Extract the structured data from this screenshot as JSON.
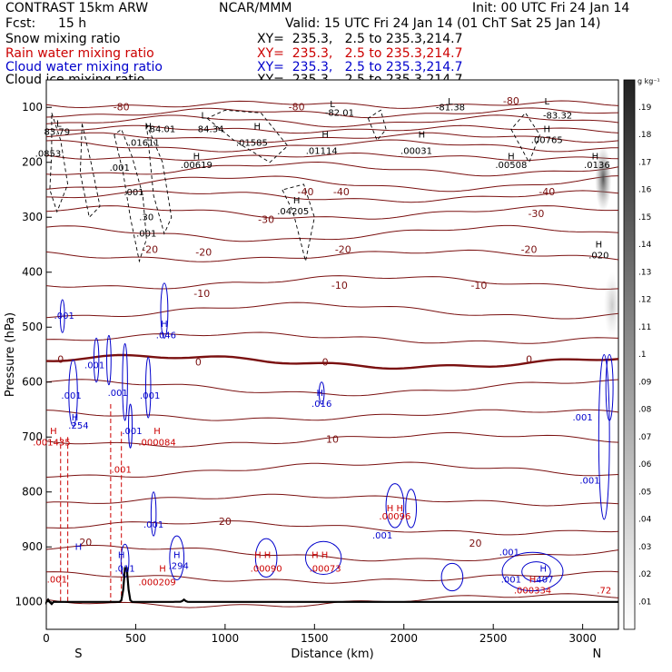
{
  "header": {
    "model": "CONTRAST 15km ARW",
    "center": "NCAR/MMM",
    "init": "Init: 00 UTC Fri 24 Jan 14",
    "fcst_label": "Fcst:",
    "fcst_value": "15 h",
    "valid": "Valid: 15 UTC Fri 24 Jan 14 (01 ChT Sat 25 Jan 14)"
  },
  "legend": [
    {
      "name": "Snow mixing ratio",
      "xy": "XY=  235.3,   2.5 to 235.3,214.7",
      "color": "#000000"
    },
    {
      "name": "Rain water mixing ratio",
      "xy": "XY=  235.3,   2.5 to 235.3,214.7",
      "color": "#cc0000"
    },
    {
      "name": "Cloud water mixing ratio",
      "xy": "XY=  235.3,   2.5 to 235.3,214.7",
      "color": "#0000cc"
    },
    {
      "name": "Cloud ice mixing ratio",
      "xy": "XY=  235.3,   2.5 to 235.3,214.7",
      "color": "#000000"
    }
  ],
  "colors": {
    "temperature": "#7a1010",
    "rain": "#cc0000",
    "cloud_water": "#0000cc",
    "snow": "#000000",
    "terrain": "#000000"
  },
  "chart_data": {
    "type": "cross-section",
    "xlabel": "Distance (km)",
    "ylabel": "Pressure (hPa)",
    "xlim": [
      0,
      3200
    ],
    "ylim": [
      1050,
      50
    ],
    "x_ticks": [
      0,
      500,
      1000,
      1500,
      2000,
      2500,
      3000
    ],
    "y_ticks": [
      100,
      200,
      300,
      400,
      500,
      600,
      700,
      800,
      900,
      1000
    ],
    "end_labels": {
      "left": "S",
      "right": "N"
    },
    "colorbar": {
      "unit": "g kg⁻¹",
      "ticks": [
        ".01",
        ".02",
        ".03",
        ".04",
        ".05",
        ".06",
        ".07",
        ".08",
        ".09",
        ".1",
        ".11",
        ".12",
        ".13",
        ".14",
        ".15",
        ".16",
        ".17",
        ".18",
        ".19"
      ]
    },
    "temperature_labels": [
      {
        "x": 420,
        "p": 100,
        "text": "-80"
      },
      {
        "x": 1400,
        "p": 100,
        "text": "-80"
      },
      {
        "x": 2600,
        "p": 90,
        "text": "-80"
      },
      {
        "x": 1450,
        "p": 255,
        "text": "-40"
      },
      {
        "x": 1650,
        "p": 255,
        "text": "-40"
      },
      {
        "x": 2800,
        "p": 255,
        "text": "-40"
      },
      {
        "x": 1230,
        "p": 305,
        "text": "-30"
      },
      {
        "x": 2740,
        "p": 295,
        "text": "-30"
      },
      {
        "x": 580,
        "p": 360,
        "text": "-20"
      },
      {
        "x": 880,
        "p": 365,
        "text": "-20"
      },
      {
        "x": 1660,
        "p": 360,
        "text": "-20"
      },
      {
        "x": 2700,
        "p": 360,
        "text": "-20"
      },
      {
        "x": 870,
        "p": 440,
        "text": "-10"
      },
      {
        "x": 1640,
        "p": 425,
        "text": "-10"
      },
      {
        "x": 2420,
        "p": 425,
        "text": "-10"
      },
      {
        "x": 80,
        "p": 560,
        "text": "0"
      },
      {
        "x": 850,
        "p": 565,
        "text": "0"
      },
      {
        "x": 1560,
        "p": 565,
        "text": "0"
      },
      {
        "x": 2700,
        "p": 560,
        "text": "0"
      },
      {
        "x": 1600,
        "p": 705,
        "text": "10"
      },
      {
        "x": 1000,
        "p": 855,
        "text": "20"
      },
      {
        "x": 220,
        "p": 893,
        "text": "20"
      },
      {
        "x": 2400,
        "p": 895,
        "text": "20"
      }
    ],
    "extrema_labels": [
      {
        "x": 70,
        "p": 130,
        "text": "L",
        "color": "black"
      },
      {
        "x": 60,
        "p": 145,
        "text": "83.79",
        "color": "black"
      },
      {
        "x": 570,
        "p": 135,
        "text": "H",
        "color": "black"
      },
      {
        "x": 545,
        "p": 165,
        "text": ".01611",
        "color": "black"
      },
      {
        "x": 650,
        "p": 140,
        "text": "84.01",
        "color": "black"
      },
      {
        "x": 880,
        "p": 115,
        "text": "L",
        "color": "black"
      },
      {
        "x": 920,
        "p": 140,
        "text": "84.34",
        "color": "black"
      },
      {
        "x": 1180,
        "p": 135,
        "text": "H",
        "color": "black"
      },
      {
        "x": 1150,
        "p": 165,
        "text": ".01585",
        "color": "black"
      },
      {
        "x": 1600,
        "p": 95,
        "text": "L",
        "color": "black"
      },
      {
        "x": 1640,
        "p": 110,
        "text": "-82.01",
        "color": "black"
      },
      {
        "x": 1560,
        "p": 150,
        "text": "H",
        "color": "black"
      },
      {
        "x": 1540,
        "p": 180,
        "text": ".01114",
        "color": "black"
      },
      {
        "x": 2100,
        "p": 150,
        "text": "H",
        "color": "black"
      },
      {
        "x": 2070,
        "p": 180,
        "text": ".00031",
        "color": "black"
      },
      {
        "x": 2260,
        "p": 90,
        "text": "L",
        "color": "black"
      },
      {
        "x": 2260,
        "p": 100,
        "text": "-81.38",
        "color": "black"
      },
      {
        "x": 2800,
        "p": 90,
        "text": "L",
        "color": "black"
      },
      {
        "x": 2860,
        "p": 115,
        "text": "-83.32",
        "color": "black"
      },
      {
        "x": 2800,
        "p": 140,
        "text": "H",
        "color": "black"
      },
      {
        "x": 2800,
        "p": 160,
        "text": ".00765",
        "color": "black"
      },
      {
        "x": 10,
        "p": 185,
        "text": ".0853",
        "color": "black"
      },
      {
        "x": 410,
        "p": 210,
        "text": ".001",
        "color": "black"
      },
      {
        "x": 840,
        "p": 190,
        "text": "H",
        "color": "black"
      },
      {
        "x": 840,
        "p": 205,
        "text": ".00619",
        "color": "black"
      },
      {
        "x": 2600,
        "p": 190,
        "text": "H",
        "color": "black"
      },
      {
        "x": 2600,
        "p": 205,
        "text": ".00508",
        "color": "black"
      },
      {
        "x": 3070,
        "p": 190,
        "text": "H",
        "color": "black"
      },
      {
        "x": 3080,
        "p": 205,
        "text": ".0136",
        "color": "black"
      },
      {
        "x": 490,
        "p": 255,
        "text": ".001",
        "color": "black"
      },
      {
        "x": 1400,
        "p": 270,
        "text": "H",
        "color": "black"
      },
      {
        "x": 1380,
        "p": 290,
        "text": ".04205",
        "color": "black"
      },
      {
        "x": 560,
        "p": 300,
        "text": ".30",
        "color": "black"
      },
      {
        "x": 560,
        "p": 330,
        "text": ".001",
        "color": "black"
      },
      {
        "x": 3090,
        "p": 350,
        "text": "H",
        "color": "black"
      },
      {
        "x": 3090,
        "p": 370,
        "text": ".020",
        "color": "black"
      },
      {
        "x": 100,
        "p": 480,
        "text": ".001",
        "color": "blue"
      },
      {
        "x": 660,
        "p": 495,
        "text": "H",
        "color": "blue"
      },
      {
        "x": 670,
        "p": 515,
        "text": ".046",
        "color": "blue"
      },
      {
        "x": 270,
        "p": 570,
        "text": ".001",
        "color": "blue"
      },
      {
        "x": 400,
        "p": 620,
        "text": ".001",
        "color": "blue"
      },
      {
        "x": 580,
        "p": 625,
        "text": ".001",
        "color": "blue"
      },
      {
        "x": 140,
        "p": 625,
        "text": ".001",
        "color": "blue"
      },
      {
        "x": 1530,
        "p": 620,
        "text": "H",
        "color": "blue"
      },
      {
        "x": 1540,
        "p": 640,
        "text": ".016",
        "color": "blue"
      },
      {
        "x": 3000,
        "p": 665,
        "text": ".001",
        "color": "blue"
      },
      {
        "x": 160,
        "p": 665,
        "text": "H",
        "color": "blue"
      },
      {
        "x": 180,
        "p": 680,
        "text": ".254",
        "color": "blue"
      },
      {
        "x": 480,
        "p": 690,
        "text": ".001",
        "color": "blue"
      },
      {
        "x": 3040,
        "p": 780,
        "text": ".001",
        "color": "blue"
      },
      {
        "x": 600,
        "p": 860,
        "text": ".001",
        "color": "blue"
      },
      {
        "x": 1880,
        "p": 880,
        "text": ".001",
        "color": "blue"
      },
      {
        "x": 2590,
        "p": 910,
        "text": ".001",
        "color": "blue"
      },
      {
        "x": 2600,
        "p": 960,
        "text": ".001",
        "color": "blue"
      },
      {
        "x": 180,
        "p": 900,
        "text": "H",
        "color": "blue"
      },
      {
        "x": 420,
        "p": 915,
        "text": "H",
        "color": "blue"
      },
      {
        "x": 440,
        "p": 940,
        "text": ".011",
        "color": "blue"
      },
      {
        "x": 730,
        "p": 915,
        "text": "H",
        "color": "blue"
      },
      {
        "x": 740,
        "p": 935,
        "text": ".294",
        "color": "blue"
      },
      {
        "x": 2780,
        "p": 940,
        "text": "H",
        "color": "blue"
      },
      {
        "x": 2780,
        "p": 960,
        "text": ".407",
        "color": "blue"
      },
      {
        "x": 40,
        "p": 690,
        "text": "H",
        "color": "red"
      },
      {
        "x": 30,
        "p": 710,
        "text": ".001435",
        "color": "red"
      },
      {
        "x": 620,
        "p": 690,
        "text": "H",
        "color": "red"
      },
      {
        "x": 620,
        "p": 710,
        "text": ".000084",
        "color": "red"
      },
      {
        "x": 420,
        "p": 760,
        "text": ".001",
        "color": "red"
      },
      {
        "x": 1950,
        "p": 830,
        "text": "H H",
        "color": "red"
      },
      {
        "x": 1950,
        "p": 845,
        "text": ".00096",
        "color": "red"
      },
      {
        "x": 650,
        "p": 940,
        "text": "H",
        "color": "red"
      },
      {
        "x": 620,
        "p": 965,
        "text": ".000209",
        "color": "red"
      },
      {
        "x": 1210,
        "p": 915,
        "text": "H H",
        "color": "red"
      },
      {
        "x": 1230,
        "p": 940,
        "text": ".00090",
        "color": "red"
      },
      {
        "x": 1530,
        "p": 915,
        "text": "H H",
        "color": "red"
      },
      {
        "x": 1560,
        "p": 940,
        "text": ".00073",
        "color": "red"
      },
      {
        "x": 2720,
        "p": 960,
        "text": "H",
        "color": "red"
      },
      {
        "x": 2720,
        "p": 980,
        "text": ".000334",
        "color": "red"
      },
      {
        "x": 60,
        "p": 960,
        "text": ".001",
        "color": "red"
      },
      {
        "x": 3120,
        "p": 980,
        "text": ".72",
        "color": "red"
      }
    ],
    "snow_shading": [
      {
        "x": 3115,
        "p_top": 170,
        "p_bottom": 290,
        "level": 0.16
      },
      {
        "x": 3165,
        "p_top": 400,
        "p_bottom": 520,
        "level": 0.05
      }
    ]
  }
}
